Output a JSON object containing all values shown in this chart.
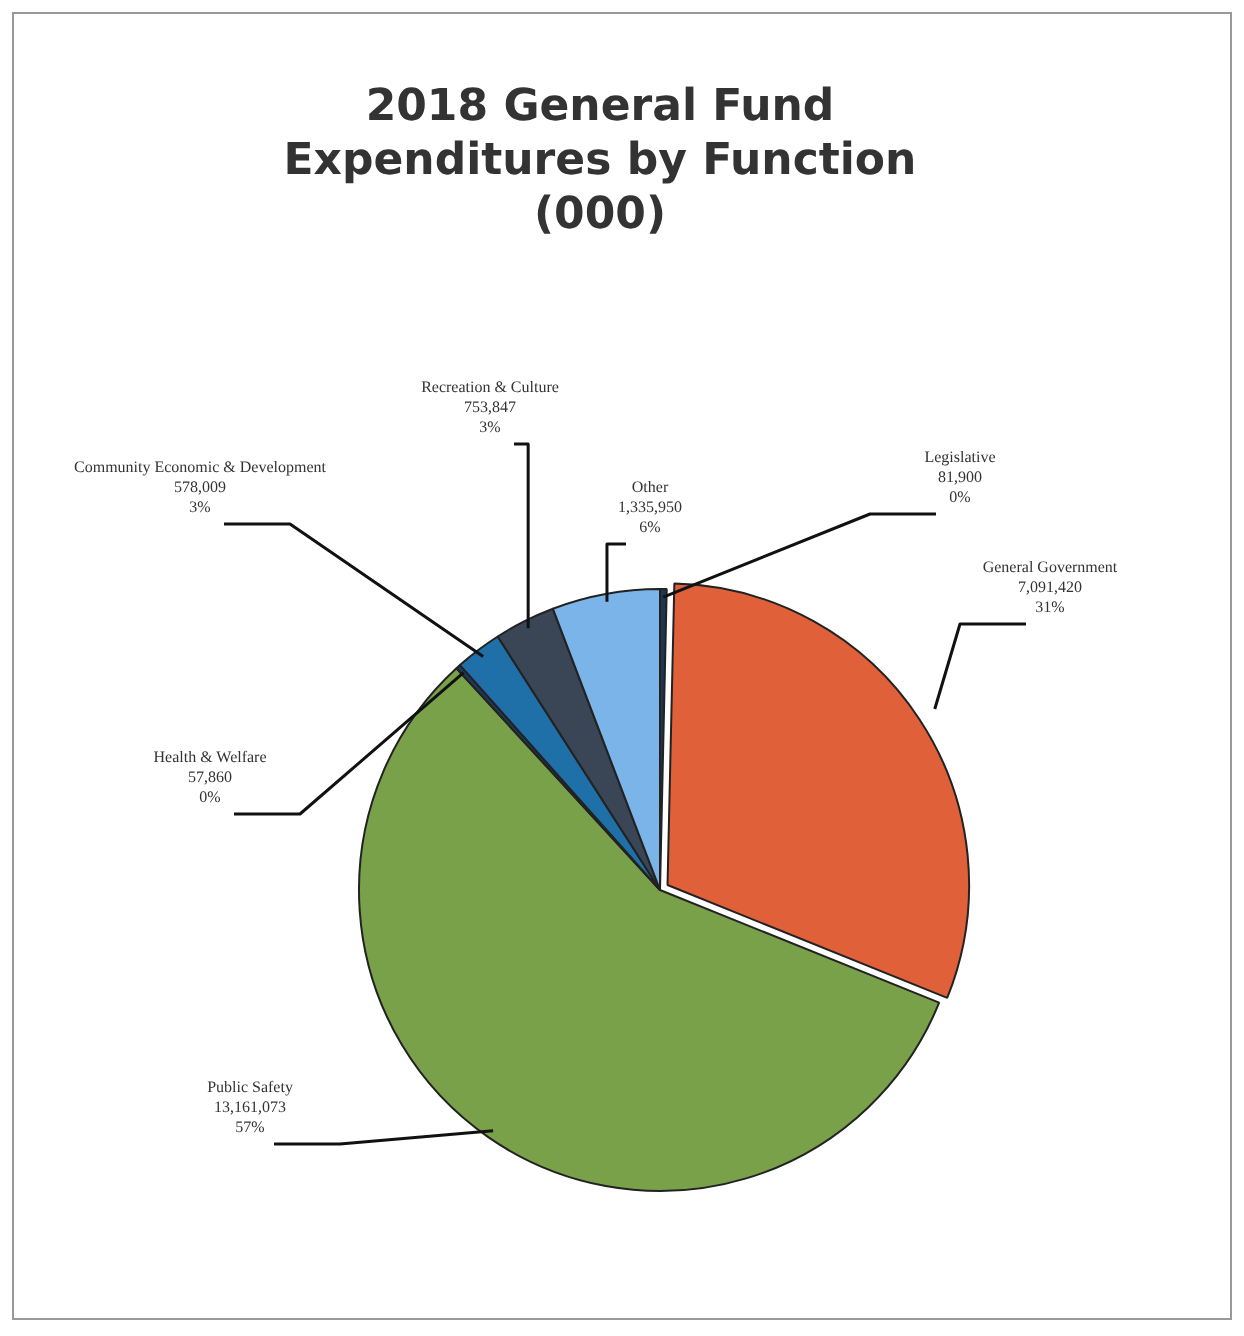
{
  "chart_data": {
    "type": "pie",
    "title": "2018 General Fund Expenditures by Function (000)",
    "categories": [
      "Legislative",
      "General Government",
      "Public Safety",
      "Health & Welfare",
      "Community Economic & Development",
      "Recreation & Culture",
      "Other"
    ],
    "values": [
      81900,
      7091420,
      13161073,
      57860,
      578009,
      753847,
      1335950
    ],
    "colors": [
      "#1f3550",
      "#e0603a",
      "#78a14a",
      "#1e3a5a",
      "#1f6fa8",
      "#3a4656",
      "#7ab4e8"
    ],
    "value_labels": [
      "81,900\n0%",
      "7,091,420\n31%",
      "13,161,073\n57%",
      "57,860\n0%",
      "578,009\n3%",
      "753,847\n3%",
      "1,335,950\n6%"
    ],
    "legend": false
  }
}
